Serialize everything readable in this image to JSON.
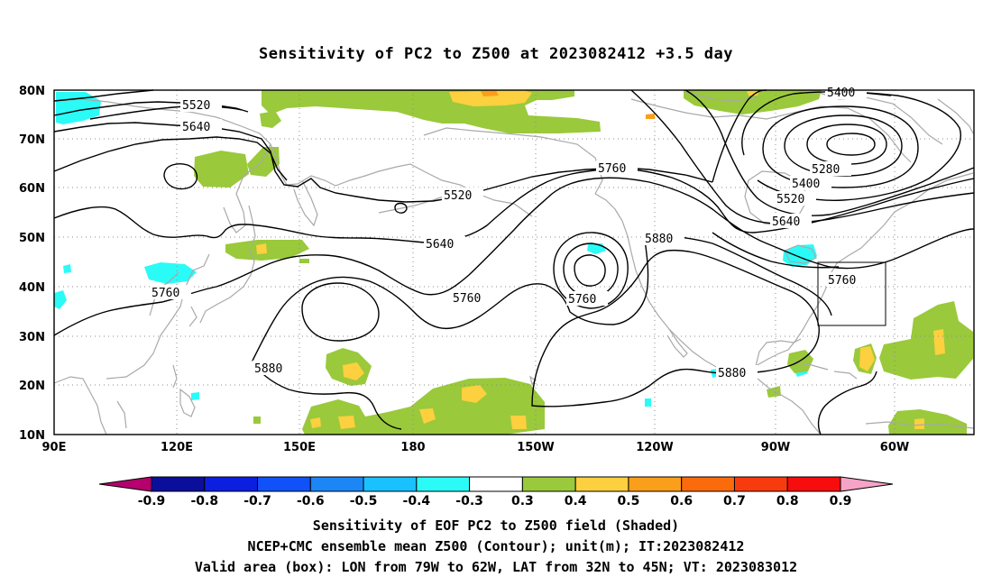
{
  "title": "Sensitivity of PC2 to Z500 at 2023082412 +3.5 day",
  "lat_labels": [
    "80N",
    "70N",
    "60N",
    "50N",
    "40N",
    "30N",
    "20N",
    "10N"
  ],
  "lon_labels": [
    "90E",
    "120E",
    "150E",
    "180",
    "150W",
    "120W",
    "90W",
    "60W"
  ],
  "contour_labels": [
    "5520",
    "5640",
    "5520",
    "5640",
    "5760",
    "5760",
    "5760",
    "5880",
    "5880",
    "5880",
    "5760",
    "5400",
    "5280",
    "5400",
    "5520",
    "5640",
    "5760"
  ],
  "colorbar": {
    "labels": [
      "-0.9",
      "-0.8",
      "-0.7",
      "-0.6",
      "-0.5",
      "-0.4",
      "-0.3",
      "0.3",
      "0.4",
      "0.5",
      "0.6",
      "0.7",
      "0.8",
      "0.9"
    ],
    "colors": [
      "#b5006e",
      "#0b0e9a",
      "#0c1fe0",
      "#1052f7",
      "#1c86f5",
      "#19c2ff",
      "#2bfbf7",
      "#ffffff",
      "#9ac93b",
      "#fcd03e",
      "#fb9e1a",
      "#fb6b0c",
      "#f83b0e",
      "#f70d0d",
      "#f6a3c8"
    ]
  },
  "caption": {
    "line1": "Sensitivity of EOF PC2 to Z500 field (Shaded)",
    "line2": "NCEP+CMC ensemble mean Z500 (Contour); unit(m); IT:2023082412",
    "line3": "Valid area (box): LON from 79W to 62W, LAT from 32N to 45N; VT: 2023083012"
  }
}
